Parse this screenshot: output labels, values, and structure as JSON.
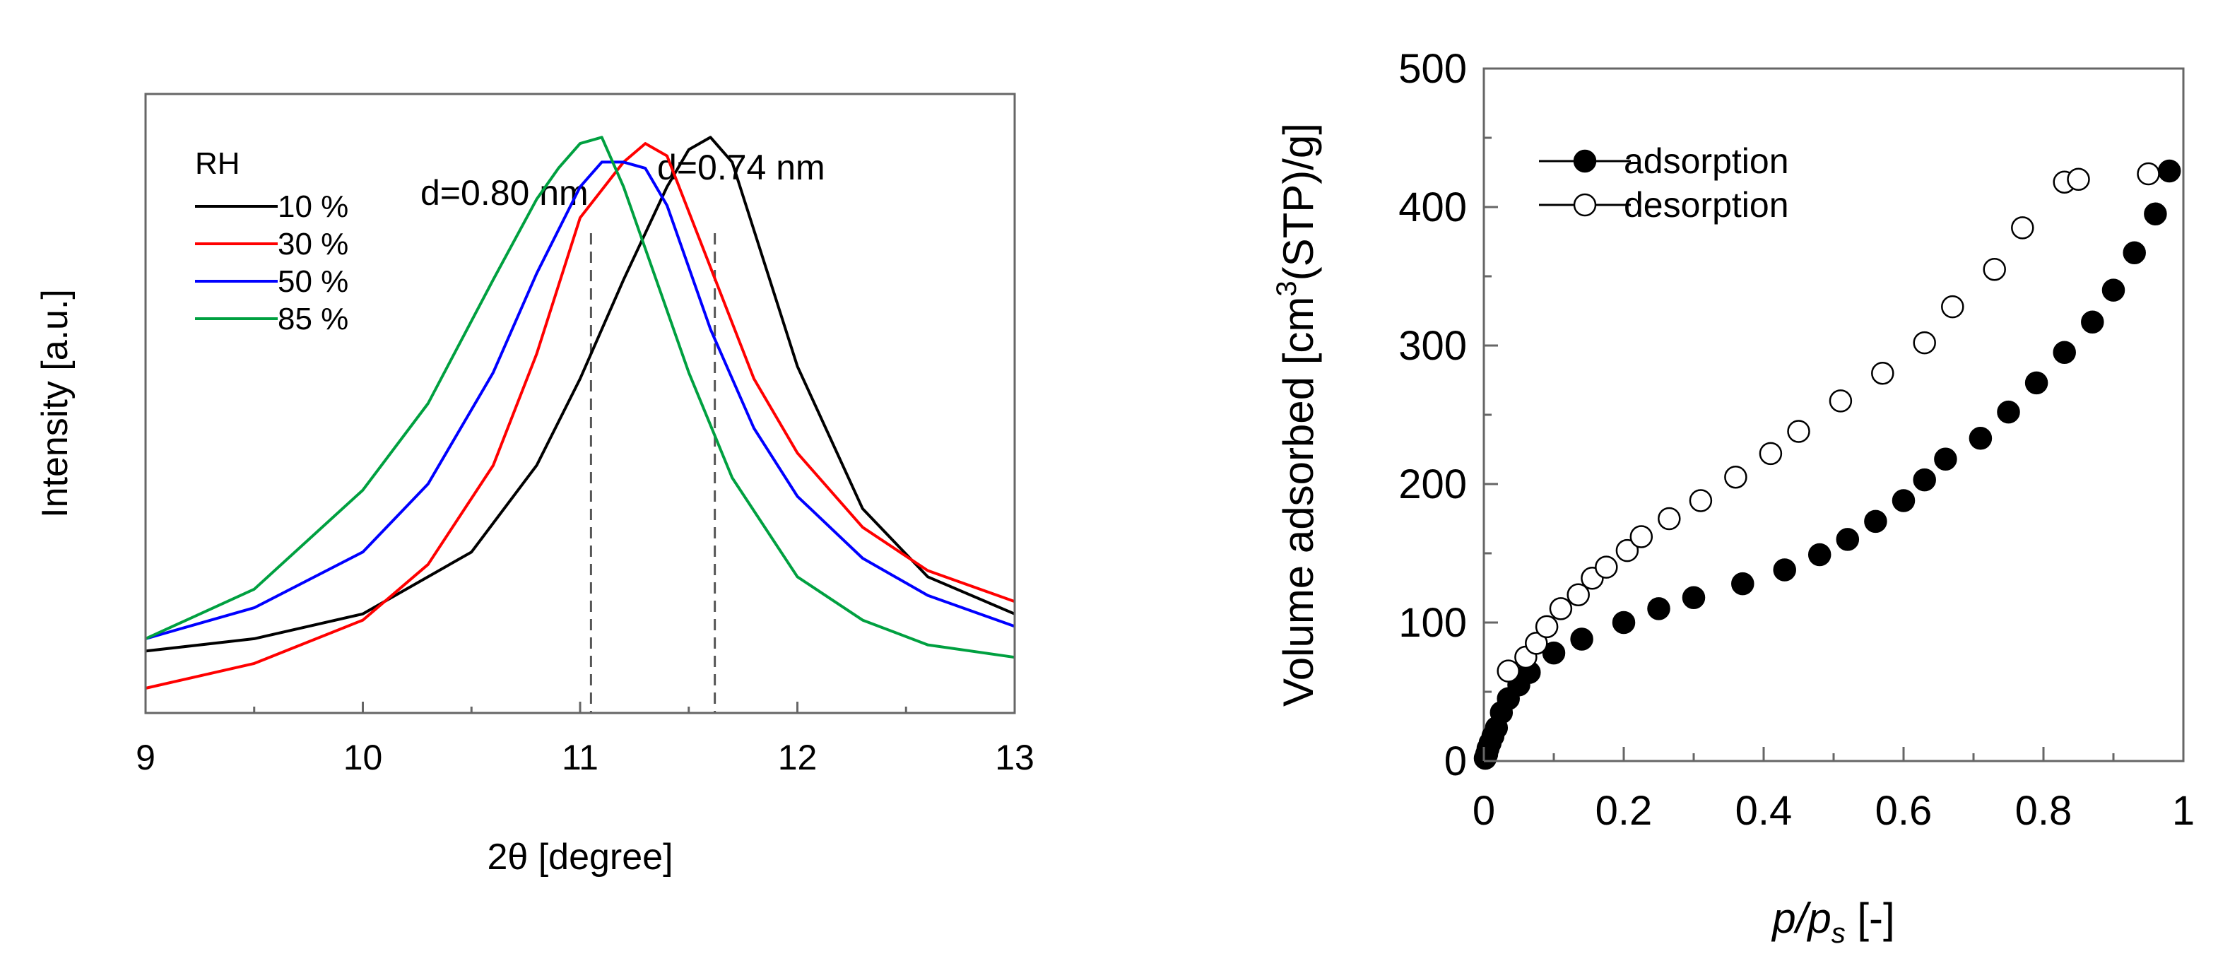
{
  "chart_data": [
    {
      "type": "line",
      "title": "",
      "xlabel": "2θ [degree]",
      "ylabel": "Intensity [a.u.]",
      "xlim": [
        9,
        13
      ],
      "ylim": [
        0,
        1
      ],
      "xticks": [
        "9",
        "10",
        "11",
        "12",
        "13"
      ],
      "legend_title": "RH",
      "legend_position": "top-left",
      "series": [
        {
          "name": "10 %",
          "color": "#000000",
          "x": [
            9.0,
            9.5,
            10.0,
            10.5,
            10.8,
            11.0,
            11.2,
            11.4,
            11.5,
            11.6,
            11.7,
            11.8,
            12.0,
            12.3,
            12.6,
            13.0
          ],
          "y": [
            0.1,
            0.12,
            0.16,
            0.26,
            0.4,
            0.54,
            0.7,
            0.85,
            0.91,
            0.93,
            0.89,
            0.78,
            0.56,
            0.33,
            0.22,
            0.16
          ]
        },
        {
          "name": "30 %",
          "color": "#ff0000",
          "x": [
            9.0,
            9.5,
            10.0,
            10.3,
            10.6,
            10.8,
            11.0,
            11.2,
            11.3,
            11.4,
            11.6,
            11.8,
            12.0,
            12.3,
            12.6,
            13.0
          ],
          "y": [
            0.04,
            0.08,
            0.15,
            0.24,
            0.4,
            0.58,
            0.8,
            0.89,
            0.92,
            0.9,
            0.72,
            0.54,
            0.42,
            0.3,
            0.23,
            0.18
          ]
        },
        {
          "name": "50 %",
          "color": "#0000ff",
          "x": [
            9.0,
            9.5,
            10.0,
            10.3,
            10.6,
            10.8,
            11.0,
            11.1,
            11.2,
            11.3,
            11.4,
            11.6,
            11.8,
            12.0,
            12.3,
            12.6,
            13.0
          ],
          "y": [
            0.12,
            0.17,
            0.26,
            0.37,
            0.55,
            0.71,
            0.85,
            0.89,
            0.89,
            0.88,
            0.82,
            0.62,
            0.46,
            0.35,
            0.25,
            0.19,
            0.14
          ]
        },
        {
          "name": "85 %",
          "color": "#00a040",
          "x": [
            9.0,
            9.5,
            10.0,
            10.3,
            10.6,
            10.8,
            10.9,
            11.0,
            11.1,
            11.2,
            11.3,
            11.5,
            11.7,
            12.0,
            12.3,
            12.6,
            13.0
          ],
          "y": [
            0.12,
            0.2,
            0.36,
            0.5,
            0.7,
            0.83,
            0.88,
            0.92,
            0.93,
            0.85,
            0.75,
            0.55,
            0.38,
            0.22,
            0.15,
            0.11,
            0.09
          ]
        }
      ],
      "reference_lines": [
        {
          "x": 11.05,
          "label": "d=0.80 nm"
        },
        {
          "x": 11.62,
          "label": "d=0.74 nm"
        }
      ]
    },
    {
      "type": "scatter",
      "title": "",
      "xlabel_main": "p/p",
      "xlabel_sub": "s",
      "xlabel_unit": " [-]",
      "ylabel_pre": "Volume adsorbed [cm",
      "ylabel_sup": "3",
      "ylabel_post": "(STP)/g]",
      "xlim": [
        0,
        1
      ],
      "ylim": [
        0,
        500
      ],
      "xticks": [
        "0",
        "0.2",
        "0.4",
        "0.6",
        "0.8",
        "1"
      ],
      "yticks": [
        "0",
        "100",
        "200",
        "300",
        "400",
        "500"
      ],
      "legend_position": "top-left",
      "series": [
        {
          "name": "adsorption",
          "marker": "filled-circle",
          "x": [
            0.002,
            0.004,
            0.006,
            0.009,
            0.013,
            0.018,
            0.025,
            0.035,
            0.05,
            0.065,
            0.1,
            0.14,
            0.2,
            0.25,
            0.3,
            0.37,
            0.43,
            0.48,
            0.52,
            0.56,
            0.6,
            0.63,
            0.66,
            0.71,
            0.75,
            0.79,
            0.83,
            0.87,
            0.9,
            0.93,
            0.96,
            0.98
          ],
          "y": [
            2,
            5,
            9,
            13,
            18,
            24,
            35,
            45,
            55,
            64,
            78,
            88,
            100,
            110,
            118,
            128,
            138,
            149,
            160,
            173,
            188,
            203,
            218,
            233,
            252,
            273,
            295,
            317,
            340,
            367,
            395,
            426
          ]
        },
        {
          "name": "desorption",
          "marker": "open-circle",
          "x": [
            0.035,
            0.06,
            0.075,
            0.09,
            0.11,
            0.135,
            0.155,
            0.175,
            0.205,
            0.225,
            0.265,
            0.31,
            0.36,
            0.41,
            0.45,
            0.51,
            0.57,
            0.63,
            0.67,
            0.73,
            0.77,
            0.83,
            0.85,
            0.95
          ],
          "y": [
            65,
            75,
            85,
            97,
            110,
            120,
            132,
            140,
            152,
            162,
            175,
            188,
            205,
            222,
            238,
            260,
            280,
            302,
            328,
            355,
            385,
            418,
            420,
            424
          ]
        }
      ]
    }
  ]
}
